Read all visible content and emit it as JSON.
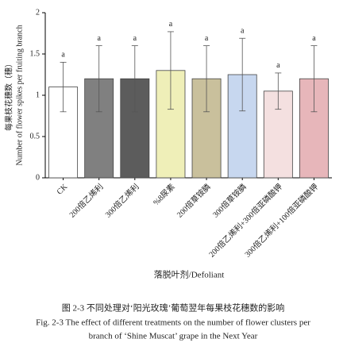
{
  "chart_data": {
    "type": "bar",
    "y_label_cn": "每果枝花穗数（穗）",
    "y_label_en": "Number of flower spikes per fruiting branch",
    "x_label": "落脱叶剂/Defoliant",
    "categories": [
      "CK",
      "200倍乙烯利",
      "300倍乙烯利",
      "%8尿素",
      "200倍草铵膦",
      "300倍草铵膦",
      "200倍乙烯利+300倍亚磷酸钾",
      "300倍乙烯利+100倍亚磷酸钾"
    ],
    "values": [
      1.1,
      1.2,
      1.2,
      1.3,
      1.2,
      1.25,
      1.05,
      1.2
    ],
    "errors": [
      0.3,
      0.4,
      0.4,
      0.47,
      0.4,
      0.44,
      0.22,
      0.4
    ],
    "significance": [
      "a",
      "a",
      "a",
      "a",
      "a",
      "a",
      "a",
      "a"
    ],
    "colors": [
      "#ffffff",
      "#808080",
      "#5c5c5c",
      "#efefb8",
      "#c9c09c",
      "#c7d7ef",
      "#f4e0e0",
      "#e7b6ba"
    ],
    "ylim": [
      0,
      2
    ],
    "yticks": [
      0,
      0.5,
      1,
      1.5,
      2
    ],
    "caption_cn": "图 2-3 不同处理对‘阳光玫瑰’葡萄翌年每果枝花穗数的影响",
    "caption_en_1": "Fig. 2-3 The effect of different treatments on the number of flower clusters per",
    "caption_en_2": "branch of ‘Shine Muscat’ grape in the Next Year"
  }
}
